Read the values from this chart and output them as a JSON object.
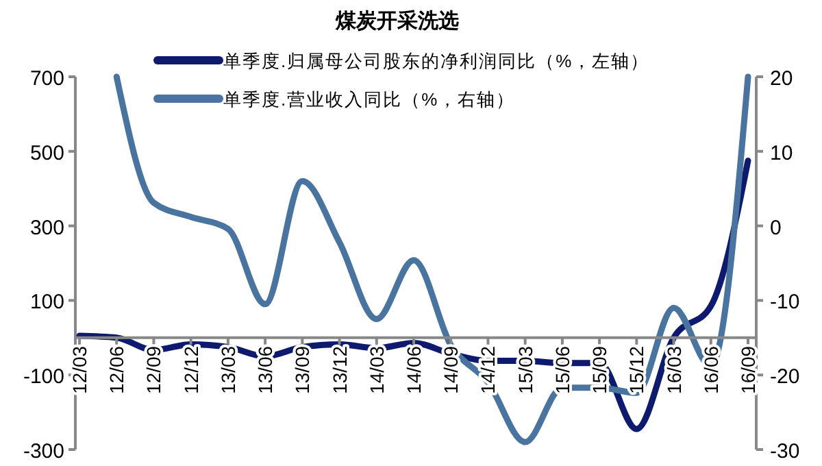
{
  "chart_data": {
    "type": "line",
    "title": "煤炭开采洗选",
    "categories": [
      "12/03",
      "12/06",
      "12/09",
      "12/12",
      "13/03",
      "13/06",
      "13/09",
      "13/12",
      "14/03",
      "14/06",
      "14/09",
      "14/12",
      "15/03",
      "15/06",
      "15/09",
      "15/12",
      "16/03",
      "16/06",
      "16/09"
    ],
    "series": [
      {
        "name": "单季度.归属母公司股东的净利润同比（%，左轴）",
        "color": "#0d1a6e",
        "values": [
          5,
          0,
          -33,
          -18,
          -25,
          -50,
          -25,
          -18,
          -28,
          -14,
          -43,
          -62,
          -62,
          -68,
          -68,
          -245,
          0,
          85,
          475
        ]
      },
      {
        "name": "单季度.营业收入同比（%，右轴）",
        "color": "#4a74a0",
        "axis": "y2",
        "values": [
          null,
          20,
          3.1,
          1.2,
          -0.4,
          -10.5,
          6,
          -2.2,
          -12.5,
          -4.6,
          -16,
          -21,
          -29,
          -21.7,
          -21.7,
          -22.4,
          -11,
          -18.8,
          20
        ]
      }
    ],
    "ylim": [
      -300,
      700
    ],
    "yticks": [
      -300,
      -100,
      100,
      300,
      500,
      700
    ],
    "y2lim": [
      -30,
      20
    ],
    "y2ticks": [
      -30,
      -20,
      -10,
      0,
      10,
      20
    ],
    "legend": "top"
  }
}
